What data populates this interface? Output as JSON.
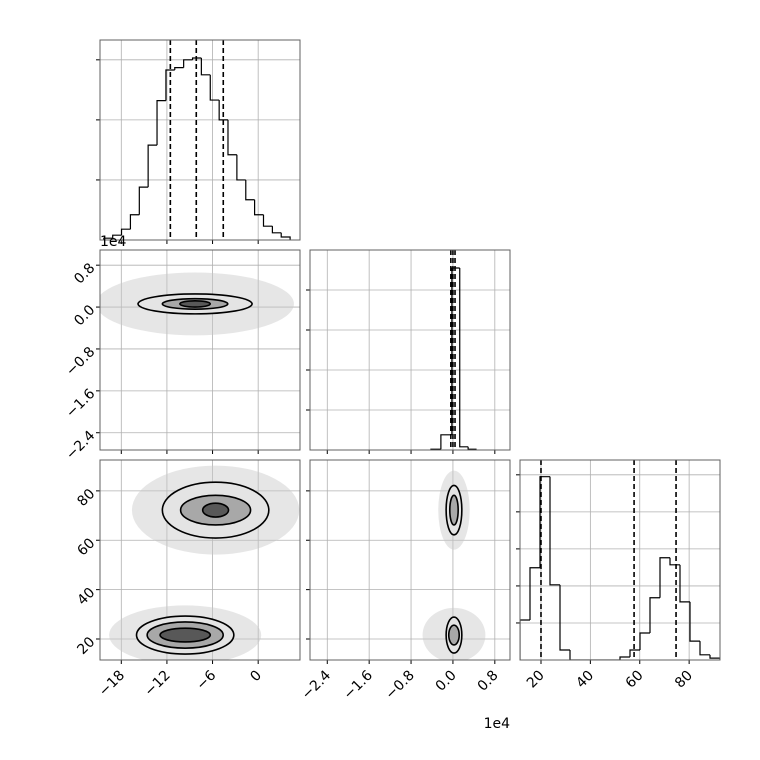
{
  "chart_data": {
    "type": "corner",
    "parameters": [
      {
        "lim": [
          -20.8,
          5.5
        ],
        "ticks": [
          {
            "value": -18,
            "label": "−18"
          },
          {
            "value": -12,
            "label": "−12"
          },
          {
            "value": -6,
            "label": "−6"
          },
          0
        ]
      },
      {
        "lim": [
          -2.73,
          1.09
        ],
        "ticks": [
          {
            "value": -2.4,
            "label": "−2.4"
          },
          {
            "value": -1.6,
            "label": "−1.6"
          },
          {
            "value": -0.8,
            "label": "−0.8"
          },
          {
            "value": 0,
            "label": "0.0"
          },
          0.8
        ],
        "offset_label": "1e4"
      },
      {
        "lim": [
          11.5,
          92.5
        ],
        "ticks": [
          20,
          40,
          60,
          80
        ]
      }
    ],
    "histograms": [
      {
        "bins": [
          -20.3,
          -19.13,
          -17.97,
          -16.8,
          -15.63,
          -14.47,
          -13.3,
          -12.13,
          -10.97,
          -9.8,
          -8.63,
          -7.47,
          -6.3,
          -5.13,
          -3.97,
          -2.8,
          -1.63,
          -0.47,
          0.7,
          1.87,
          3.03,
          4.2
        ],
        "counts": [
          0.03,
          0.08,
          0.18,
          0.42,
          0.88,
          1.58,
          2.32,
          2.83,
          2.87,
          3.0,
          3.03,
          2.75,
          2.33,
          2.0,
          1.42,
          1.0,
          0.67,
          0.42,
          0.23,
          0.12,
          0.05
        ],
        "ylim": [
          0,
          3.33
        ],
        "yticks": [
          1,
          2,
          3
        ],
        "quantiles": [
          -11.55,
          -8.14,
          -4.59
        ]
      },
      {
        "bins": [
          -0.42,
          -0.23,
          -0.02,
          0.13,
          0.29,
          0.44
        ],
        "counts": [
          0.02,
          0.38,
          4.55,
          0.08,
          0.02
        ],
        "ylim": [
          0,
          5
        ],
        "yticks": [
          1,
          2,
          3,
          4
        ],
        "quantiles": [
          -0.04,
          0.0,
          0.04
        ]
      },
      {
        "bins": [
          11.5,
          15.55,
          19.6,
          23.65,
          27.7,
          31.75,
          35.8,
          39.85,
          43.9,
          47.95,
          52.0,
          56.05,
          60.1,
          64.15,
          68.2,
          72.25,
          76.3,
          80.35,
          84.4,
          88.45,
          92.5
        ],
        "counts": [
          1.08,
          2.49,
          4.95,
          2.03,
          0.27,
          0,
          0,
          0,
          0,
          0,
          0.08,
          0.27,
          0.73,
          1.68,
          2.76,
          2.57,
          1.57,
          0.51,
          0.14,
          0.05
        ],
        "ylim": [
          0,
          5.4
        ],
        "yticks": [
          1,
          2,
          3,
          4,
          5
        ],
        "quantiles": [
          20,
          57.7,
          74.7
        ]
      }
    ],
    "pairs": [
      {
        "blobs": [
          {
            "cx": -8.3,
            "cy": 0.06,
            "cloud": {
              "rx": 13,
              "ry": 0.6
            },
            "contours": [
              {
                "rx": 7.5,
                "ry": 0.19
              },
              {
                "rx": 4.3,
                "ry": 0.1
              },
              {
                "rx": 2,
                "ry": 0.06
              }
            ]
          }
        ]
      },
      {
        "blobs": [
          {
            "cx": -5.6,
            "cy": 72.2,
            "cloud": {
              "rx": 11,
              "ry": 18
            },
            "contours": [
              {
                "rx": 7,
                "ry": 11.3
              },
              {
                "rx": 4.6,
                "ry": 6
              },
              {
                "rx": 1.7,
                "ry": 2.8
              }
            ]
          },
          {
            "cx": -9.6,
            "cy": 21.6,
            "cloud": {
              "rx": 10,
              "ry": 12
            },
            "contours": [
              {
                "rx": 6.4,
                "ry": 7.7
              },
              {
                "rx": 5,
                "ry": 5.3
              },
              {
                "rx": 3.3,
                "ry": 2.8
              }
            ]
          }
        ]
      },
      {
        "blobs": [
          {
            "cx": 0.02,
            "cy": 72.2,
            "cloud": {
              "rx": 0.3,
              "ry": 16
            },
            "contours": [
              {
                "rx": 0.15,
                "ry": 10
              },
              {
                "rx": 0.08,
                "ry": 6
              }
            ]
          },
          {
            "cx": 0.02,
            "cy": 21.6,
            "cloud": {
              "rx": 0.6,
              "ry": 11
            },
            "contours": [
              {
                "rx": 0.15,
                "ry": 7.3
              },
              {
                "rx": 0.1,
                "ry": 4
              }
            ]
          }
        ]
      }
    ]
  }
}
